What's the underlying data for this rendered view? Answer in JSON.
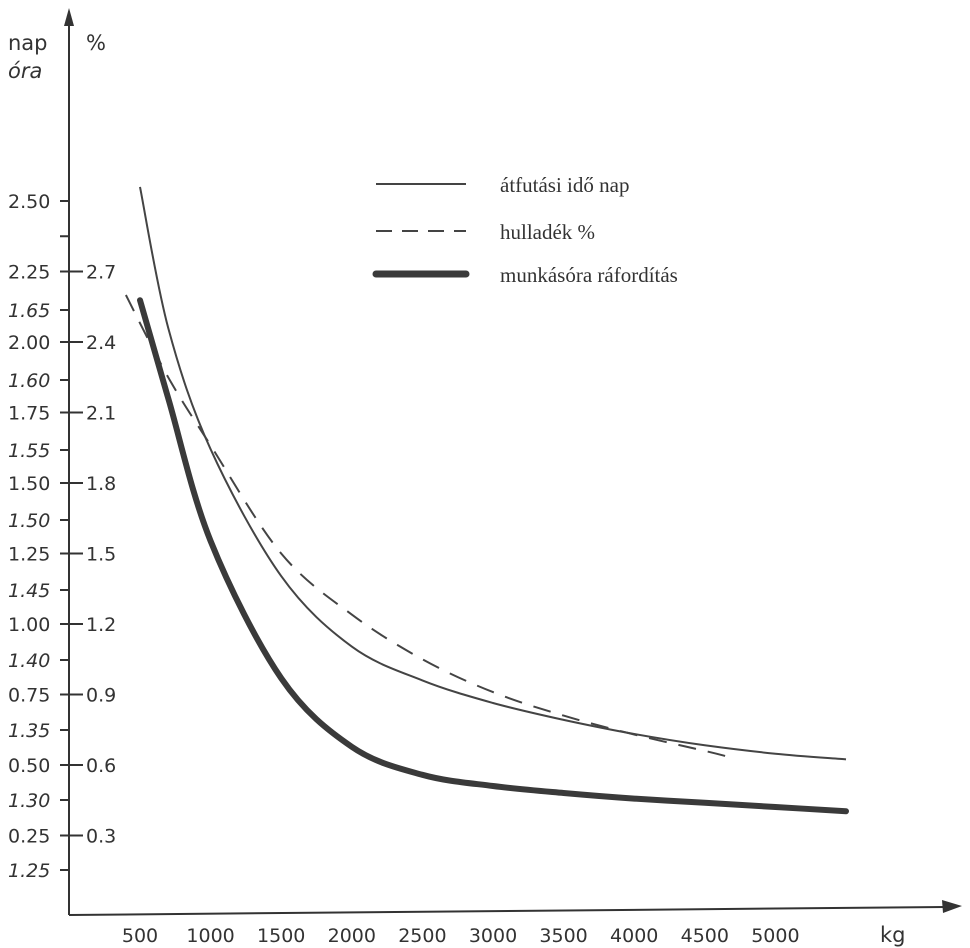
{
  "chart_data": {
    "type": "line",
    "axis_labels": {
      "left_unit_1": "nap",
      "left_unit_2": "%",
      "left_unit_3": "óra",
      "x_unit": "kg"
    },
    "x_ticks": [
      "500",
      "1000",
      "1500",
      "2000",
      "2500",
      "3000",
      "3500",
      "4000",
      "4500",
      "5000"
    ],
    "y_ticks_nap": [
      "2.50",
      "2.25",
      "2.00",
      "1.75",
      "1.50",
      "1.25",
      "1.00",
      "0.75",
      "0.50",
      "0.25"
    ],
    "y_ticks_pct": [
      "2.7",
      "2.4",
      "2.1",
      "1.8",
      "1.5",
      "1.2",
      "0.9",
      "0.6",
      "0.3"
    ],
    "y_ticks_ora": [
      "1.65",
      "1.60",
      "1.55",
      "1.50",
      "1.45",
      "1.40",
      "1.35",
      "1.30",
      "1.25"
    ],
    "series": [
      {
        "name": "átfutási idő nap",
        "axis": "nap",
        "style": "thin",
        "x": [
          500,
          700,
          1000,
          1500,
          2000,
          2500,
          3000,
          3500,
          4000,
          4500,
          5000,
          5500
        ],
        "values": [
          2.55,
          2.05,
          1.62,
          1.17,
          0.92,
          0.8,
          0.72,
          0.66,
          0.61,
          0.57,
          0.54,
          0.52
        ]
      },
      {
        "name": "hulladék %",
        "axis": "pct",
        "style": "dashed",
        "x": [
          400,
          700,
          1000,
          1500,
          2000,
          2500,
          3000,
          3500,
          4000,
          4500,
          4700
        ],
        "values": [
          2.6,
          2.25,
          1.96,
          1.5,
          1.24,
          1.05,
          0.91,
          0.81,
          0.73,
          0.66,
          0.63
        ]
      },
      {
        "name": "munkásóra ráfordítás",
        "axis": "ora",
        "style": "thick",
        "x": [
          500,
          700,
          1000,
          1500,
          2000,
          2500,
          3000,
          3500,
          4000,
          4500,
          5000,
          5500
        ],
        "values": [
          1.657,
          1.587,
          1.485,
          1.387,
          1.338,
          1.318,
          1.31,
          1.305,
          1.301,
          1.298,
          1.295,
          1.292
        ]
      }
    ],
    "legend": {
      "position": "top-right",
      "entries": [
        "átfutási idő nap",
        "hulladék %",
        "munkásóra ráfordítás"
      ]
    },
    "grid": false
  }
}
